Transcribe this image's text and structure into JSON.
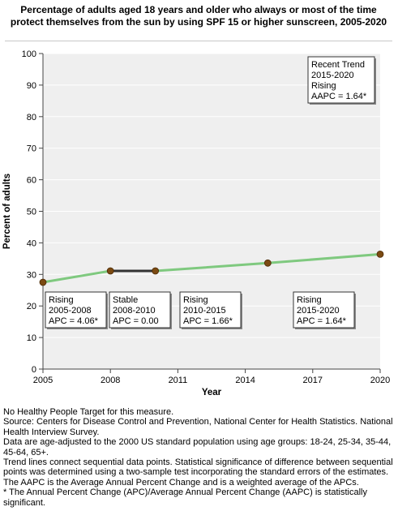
{
  "chart_data": {
    "type": "line",
    "title": "Percentage of adults aged 18 years and older who always or most of the time protect themselves from the sun by using SPF 15 or higher sunscreen, 2005-2020",
    "xlabel": "Year",
    "ylabel": "Percent of adults",
    "xlim": [
      2005,
      2020
    ],
    "ylim": [
      0,
      100
    ],
    "x_ticks": [
      "2005",
      "2008",
      "2011",
      "2014",
      "2017",
      "2020"
    ],
    "y_ticks": [
      "0",
      "10",
      "20",
      "30",
      "40",
      "50",
      "60",
      "70",
      "80",
      "90",
      "100"
    ],
    "grid": "horizontal",
    "points": [
      {
        "x": 2005,
        "y": 27.5
      },
      {
        "x": 2008,
        "y": 31.1
      },
      {
        "x": 2010,
        "y": 31.1
      },
      {
        "x": 2015,
        "y": 33.6
      },
      {
        "x": 2020,
        "y": 36.4
      }
    ],
    "segments": [
      {
        "from": 2005,
        "to": 2008,
        "trend": "rising",
        "lines": [
          "Rising",
          "2005-2008",
          "APC =  4.06*"
        ]
      },
      {
        "from": 2008,
        "to": 2010,
        "trend": "stable",
        "lines": [
          "Stable",
          "2008-2010",
          "APC =  0.00"
        ]
      },
      {
        "from": 2010,
        "to": 2015,
        "trend": "rising",
        "lines": [
          "Rising",
          "2010-2015",
          "APC =  1.66*"
        ]
      },
      {
        "from": 2015,
        "to": 2020,
        "trend": "rising",
        "lines": [
          "Rising",
          "2015-2020",
          "APC =  1.64*"
        ]
      }
    ],
    "recent_trend": {
      "lines": [
        "Recent Trend",
        "2015-2020",
        "Rising",
        "AAPC =  1.64*"
      ]
    },
    "colors": {
      "rising": "#7fc97f",
      "stable": "#333333",
      "marker": "#7b4a12",
      "plot_bg": "#efefef",
      "grid": "#ffffff"
    }
  },
  "notes": [
    "No Healthy People Target for this measure.",
    "Source: Centers for Disease Control and Prevention, National Center for Health Statistics. National Health Interview Survey.",
    "Data are age-adjusted to the 2000 US standard population using age groups: 18-24, 25-34, 35-44, 45-64, 65+.",
    "Trend lines connect sequential data points. Statistical significance of difference between sequential points was determined using a two-sample test incorporating the standard errors of the estimates.",
    "The AAPC is the Average Annual Percent Change and is a weighted average of the APCs.",
    "* The Annual Percent Change (APC)/Average Annual Percent Change (AAPC) is statistically significant."
  ]
}
